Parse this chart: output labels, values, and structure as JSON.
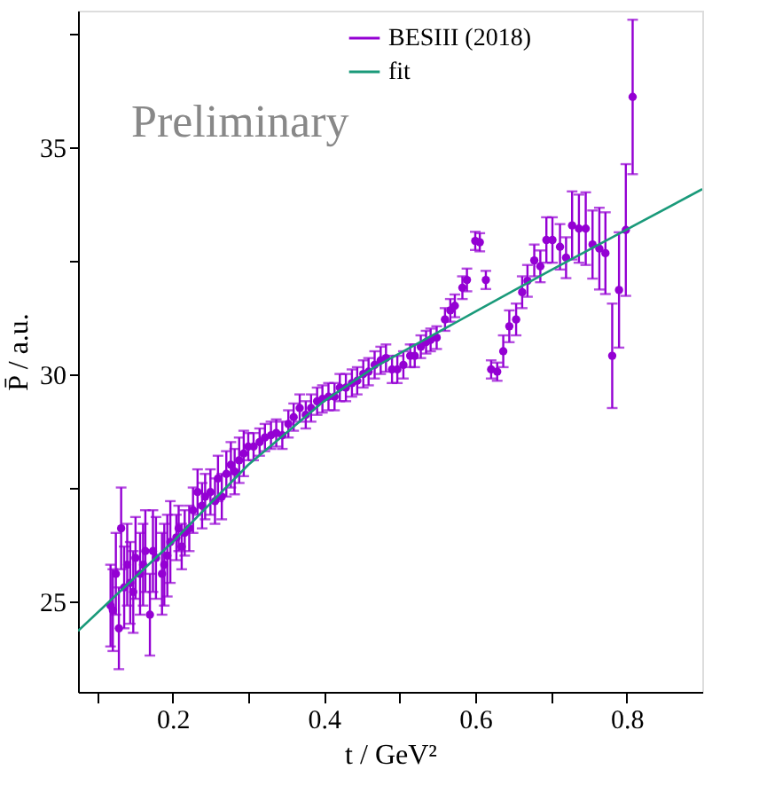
{
  "chart_data": {
    "type": "scatter",
    "xlabel": "t / GeV²",
    "ylabel": "P̄ / a.u.",
    "xlim": [
      0.075,
      0.9
    ],
    "ylim": [
      23,
      38
    ],
    "xticks": [
      {
        "value": 0.1,
        "label": null
      },
      0.2,
      {
        "value": 0.3,
        "label": null
      },
      0.4,
      {
        "value": 0.5,
        "label": null
      },
      0.6,
      {
        "value": 0.7,
        "label": null
      },
      0.8
    ],
    "yticks": [
      25,
      {
        "value": 27.5,
        "label": null
      },
      30,
      {
        "value": 32.5,
        "label": null
      },
      35,
      {
        "value": 37.5,
        "label": null
      }
    ],
    "legend": "top right",
    "annotations": [
      "Preliminary"
    ],
    "series": [
      {
        "name": "BESIII (2018)",
        "color": "#9400d3",
        "marker": "circle",
        "x": [
          0.118,
          0.121,
          0.125,
          0.129,
          0.132,
          0.136,
          0.14,
          0.144,
          0.148,
          0.151,
          0.157,
          0.161,
          0.164,
          0.17,
          0.174,
          0.178,
          0.186,
          0.189,
          0.193,
          0.197,
          0.205,
          0.208,
          0.212,
          0.216,
          0.222,
          0.227,
          0.233,
          0.239,
          0.243,
          0.25,
          0.256,
          0.26,
          0.265,
          0.271,
          0.277,
          0.282,
          0.288,
          0.294,
          0.3,
          0.307,
          0.315,
          0.322,
          0.33,
          0.337,
          0.345,
          0.353,
          0.36,
          0.368,
          0.376,
          0.383,
          0.391,
          0.398,
          0.406,
          0.414,
          0.421,
          0.429,
          0.437,
          0.444,
          0.452,
          0.459,
          0.467,
          0.475,
          0.482,
          0.49,
          0.497,
          0.505,
          0.514,
          0.52,
          0.528,
          0.535,
          0.541,
          0.549,
          0.56,
          0.567,
          0.573,
          0.583,
          0.589,
          0.6,
          0.606,
          0.614,
          0.621,
          0.629,
          0.637,
          0.645,
          0.654,
          0.662,
          0.669,
          0.678,
          0.686,
          0.694,
          0.702,
          0.712,
          0.72,
          0.728,
          0.737,
          0.746,
          0.755,
          0.764,
          0.772,
          0.781,
          0.79,
          0.799,
          0.808
        ],
        "values": [
          24.9,
          24.8,
          25.6,
          24.4,
          26.6,
          25.3,
          25.8,
          25.4,
          25.2,
          25.95,
          25.6,
          25.8,
          26.1,
          24.7,
          26.1,
          25.95,
          25.6,
          25.8,
          26.0,
          26.3,
          26.4,
          26.6,
          26.2,
          26.5,
          26.6,
          27.0,
          27.4,
          27.1,
          27.3,
          27.4,
          27.2,
          27.7,
          27.3,
          27.8,
          28.0,
          27.85,
          28.1,
          28.25,
          28.4,
          28.4,
          28.5,
          28.6,
          28.65,
          28.7,
          28.65,
          28.9,
          29.05,
          29.25,
          29.1,
          29.25,
          29.4,
          29.45,
          29.5,
          29.5,
          29.7,
          29.7,
          29.8,
          29.85,
          30.0,
          30.05,
          30.2,
          30.3,
          30.35,
          30.1,
          30.1,
          30.2,
          30.4,
          30.4,
          30.6,
          30.7,
          30.75,
          30.8,
          31.2,
          31.4,
          31.5,
          31.9,
          32.07,
          32.93,
          32.9,
          32.07,
          30.1,
          30.05,
          30.5,
          31.05,
          31.2,
          31.8,
          32.05,
          32.5,
          32.37,
          32.95,
          32.95,
          32.8,
          32.56,
          33.27,
          33.2,
          33.2,
          32.85,
          32.76,
          32.66,
          30.4,
          31.85,
          33.17,
          36.1
        ],
        "errors": [
          0.9,
          0.9,
          0.9,
          0.9,
          0.9,
          0.9,
          0.9,
          0.9,
          0.9,
          0.9,
          0.9,
          0.9,
          0.9,
          0.9,
          0.9,
          0.9,
          0.9,
          0.9,
          0.9,
          0.9,
          0.5,
          0.5,
          0.5,
          0.5,
          0.5,
          0.5,
          0.5,
          0.5,
          0.5,
          0.5,
          0.5,
          0.5,
          0.5,
          0.5,
          0.5,
          0.5,
          0.5,
          0.5,
          0.3,
          0.3,
          0.3,
          0.3,
          0.3,
          0.3,
          0.3,
          0.3,
          0.3,
          0.3,
          0.3,
          0.3,
          0.3,
          0.3,
          0.3,
          0.3,
          0.3,
          0.3,
          0.3,
          0.3,
          0.3,
          0.3,
          0.3,
          0.3,
          0.3,
          0.3,
          0.3,
          0.3,
          0.25,
          0.25,
          0.25,
          0.25,
          0.25,
          0.25,
          0.25,
          0.25,
          0.25,
          0.25,
          0.25,
          0.2,
          0.2,
          0.2,
          0.2,
          0.2,
          0.35,
          0.35,
          0.35,
          0.35,
          0.35,
          0.35,
          0.35,
          0.5,
          0.5,
          0.5,
          0.45,
          0.75,
          0.75,
          0.8,
          0.75,
          0.9,
          0.9,
          1.15,
          1.27,
          1.45,
          [
            34.4,
            37.8
          ]
        ]
      },
      {
        "name": "fit",
        "color": "#1a9a7a",
        "type": "line",
        "marker": "none",
        "x": [
          0.075,
          0.2,
          0.3,
          0.4,
          0.467,
          0.6,
          0.695,
          0.8,
          0.9
        ],
        "values": [
          24.34,
          26.3,
          28.0,
          29.4,
          30.15,
          31.37,
          32.24,
          33.18,
          34.07
        ]
      }
    ]
  }
}
